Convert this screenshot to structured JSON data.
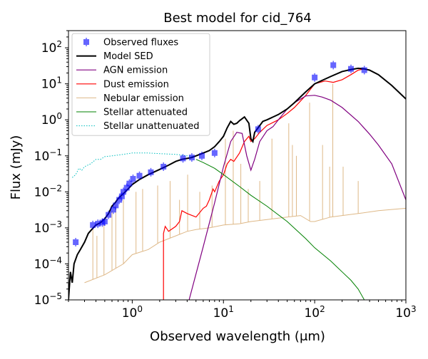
{
  "chart_data": {
    "type": "line",
    "title": "Best model for cid_764",
    "xlabel": "Observed wavelength (μm)",
    "ylabel": "Flux (mJy)",
    "xscale": "log",
    "yscale": "log",
    "xlim": [
      0.2,
      1000
    ],
    "ylim": [
      1e-05,
      300
    ],
    "x_ticks": [
      {
        "value": 1,
        "label": "10^0"
      },
      {
        "value": 10,
        "label": "10^1"
      },
      {
        "value": 100,
        "label": "10^2"
      },
      {
        "value": 1000,
        "label": "10^3"
      }
    ],
    "y_ticks": [
      {
        "value": 1e-05,
        "label": "10^-5"
      },
      {
        "value": 0.0001,
        "label": "10^-4"
      },
      {
        "value": 0.001,
        "label": "10^-3"
      },
      {
        "value": 0.01,
        "label": "10^-2"
      },
      {
        "value": 0.1,
        "label": "10^-1"
      },
      {
        "value": 1,
        "label": "10^0"
      },
      {
        "value": 10,
        "label": "10^1"
      },
      {
        "value": 100,
        "label": "10^2"
      }
    ],
    "legend_position": "top-left",
    "series": [
      {
        "name": "Model SED",
        "color": "#000000",
        "width": 2,
        "points": [
          [
            0.2,
            1e-05
          ],
          [
            0.21,
            6e-05
          ],
          [
            0.22,
            3e-05
          ],
          [
            0.23,
            0.0001
          ],
          [
            0.25,
            0.00018
          ],
          [
            0.27,
            0.00025
          ],
          [
            0.3,
            0.0004
          ],
          [
            0.33,
            0.0007
          ],
          [
            0.36,
            0.0009
          ],
          [
            0.4,
            0.0012
          ],
          [
            0.45,
            0.0014
          ],
          [
            0.5,
            0.0018
          ],
          [
            0.55,
            0.0025
          ],
          [
            0.6,
            0.004
          ],
          [
            0.65,
            0.005
          ],
          [
            0.7,
            0.0065
          ],
          [
            0.8,
            0.009
          ],
          [
            0.9,
            0.012
          ],
          [
            1.0,
            0.016
          ],
          [
            1.2,
            0.022
          ],
          [
            1.5,
            0.03
          ],
          [
            2.0,
            0.042
          ],
          [
            2.5,
            0.055
          ],
          [
            3,
            0.07
          ],
          [
            3.5,
            0.08
          ],
          [
            4,
            0.085
          ],
          [
            4.5,
            0.09
          ],
          [
            5,
            0.1
          ],
          [
            6,
            0.12
          ],
          [
            7,
            0.14
          ],
          [
            8,
            0.18
          ],
          [
            9,
            0.25
          ],
          [
            10,
            0.35
          ],
          [
            11,
            0.6
          ],
          [
            12,
            0.9
          ],
          [
            13,
            0.75
          ],
          [
            14,
            0.8
          ],
          [
            15,
            0.95
          ],
          [
            17,
            1.2
          ],
          [
            19,
            0.8
          ],
          [
            20,
            0.3
          ],
          [
            21,
            0.25
          ],
          [
            22,
            0.45
          ],
          [
            24,
            0.6
          ],
          [
            27,
            0.9
          ],
          [
            30,
            1.0
          ],
          [
            40,
            1.4
          ],
          [
            50,
            2.0
          ],
          [
            60,
            3.0
          ],
          [
            80,
            6.0
          ],
          [
            100,
            10
          ],
          [
            150,
            16
          ],
          [
            200,
            22
          ],
          [
            250,
            25
          ],
          [
            300,
            27
          ],
          [
            350,
            26
          ],
          [
            400,
            24
          ],
          [
            500,
            18
          ],
          [
            700,
            9
          ],
          [
            1000,
            3.8
          ]
        ]
      },
      {
        "name": "AGN emission",
        "color": "#800080",
        "width": 1.2,
        "points": [
          [
            4.2,
            1e-05
          ],
          [
            6,
            0.0003
          ],
          [
            8,
            0.005
          ],
          [
            10,
            0.05
          ],
          [
            12,
            0.25
          ],
          [
            14,
            0.45
          ],
          [
            16,
            0.42
          ],
          [
            18,
            0.1
          ],
          [
            20,
            0.04
          ],
          [
            22,
            0.08
          ],
          [
            25,
            0.25
          ],
          [
            30,
            0.5
          ],
          [
            35,
            0.65
          ],
          [
            40,
            1.0
          ],
          [
            50,
            2.0
          ],
          [
            60,
            3.0
          ],
          [
            80,
            4.6
          ],
          [
            100,
            4.8
          ],
          [
            120,
            4.3
          ],
          [
            150,
            3.5
          ],
          [
            200,
            2.2
          ],
          [
            300,
            0.9
          ],
          [
            400,
            0.4
          ],
          [
            500,
            0.2
          ],
          [
            700,
            0.06
          ],
          [
            1000,
            0.006
          ]
        ]
      },
      {
        "name": "Dust emission",
        "color": "#ff0000",
        "width": 1.2,
        "points": [
          [
            2.2,
            1e-05
          ],
          [
            2.2,
            0.0007
          ],
          [
            2.3,
            0.0011
          ],
          [
            2.5,
            0.0008
          ],
          [
            3,
            0.0011
          ],
          [
            3.3,
            0.0015
          ],
          [
            3.5,
            0.003
          ],
          [
            4,
            0.0025
          ],
          [
            5,
            0.002
          ],
          [
            6,
            0.0035
          ],
          [
            6.5,
            0.004
          ],
          [
            7,
            0.006
          ],
          [
            7.7,
            0.012
          ],
          [
            8,
            0.01
          ],
          [
            9,
            0.02
          ],
          [
            10,
            0.03
          ],
          [
            11,
            0.06
          ],
          [
            12,
            0.08
          ],
          [
            13,
            0.07
          ],
          [
            15,
            0.12
          ],
          [
            17,
            0.25
          ],
          [
            19,
            0.35
          ],
          [
            20,
            0.25
          ],
          [
            22,
            0.3
          ],
          [
            25,
            0.45
          ],
          [
            30,
            0.7
          ],
          [
            40,
            1.0
          ],
          [
            50,
            1.5
          ],
          [
            60,
            2.2
          ],
          [
            80,
            4.8
          ],
          [
            100,
            10
          ],
          [
            130,
            12
          ],
          [
            160,
            11
          ],
          [
            200,
            13
          ],
          [
            250,
            18
          ],
          [
            300,
            24
          ],
          [
            350,
            26
          ],
          [
            400,
            24
          ],
          [
            500,
            18
          ],
          [
            700,
            9
          ],
          [
            1000,
            3.8
          ]
        ]
      },
      {
        "name": "Nebular emission",
        "color": "#deb887",
        "width": 1,
        "points": [
          [
            0.3,
            3e-05
          ],
          [
            0.5,
            5e-05
          ],
          [
            0.8,
            0.0001
          ],
          [
            1,
            0.00018
          ],
          [
            1.5,
            0.00025
          ],
          [
            2,
            0.0004
          ],
          [
            3,
            0.0006
          ],
          [
            4,
            0.0008
          ],
          [
            5,
            0.0009
          ],
          [
            7,
            0.001
          ],
          [
            10,
            0.0012
          ],
          [
            15,
            0.0013
          ],
          [
            20,
            0.0015
          ],
          [
            30,
            0.0017
          ],
          [
            50,
            0.002
          ],
          [
            70,
            0.0022
          ],
          [
            90,
            0.0015
          ],
          [
            100,
            0.0015
          ],
          [
            150,
            0.002
          ],
          [
            200,
            0.0022
          ],
          [
            300,
            0.0025
          ],
          [
            500,
            0.003
          ],
          [
            1000,
            0.0035
          ]
        ],
        "emission_lines": [
          [
            0.37,
            0.001
          ],
          [
            0.41,
            0.0006
          ],
          [
            0.49,
            0.0012
          ],
          [
            0.6,
            0.003
          ],
          [
            0.66,
            0.0045
          ],
          [
            0.8,
            0.006
          ],
          [
            1.1,
            0.01
          ],
          [
            1.3,
            0.012
          ],
          [
            1.9,
            0.015
          ],
          [
            2.6,
            0.02
          ],
          [
            3.3,
            0.006
          ],
          [
            4.05,
            0.03
          ],
          [
            5.5,
            0.01
          ],
          [
            7.5,
            0.015
          ],
          [
            10.5,
            0.3
          ],
          [
            12.8,
            0.5
          ],
          [
            15.5,
            0.06
          ],
          [
            18.7,
            0.012
          ],
          [
            25,
            0.02
          ],
          [
            34,
            0.3
          ],
          [
            52,
            0.8
          ],
          [
            57,
            0.2
          ],
          [
            63,
            0.1
          ],
          [
            88,
            3.0
          ],
          [
            122,
            0.2
          ],
          [
            146,
            0.05
          ],
          [
            158,
            10
          ],
          [
            205,
            0.05
          ],
          [
            300,
            0.02
          ]
        ]
      },
      {
        "name": "Stellar attenuated",
        "color": "#008000",
        "width": 1,
        "points": [
          [
            5,
            0.08
          ],
          [
            6,
            0.065
          ],
          [
            8,
            0.045
          ],
          [
            10,
            0.03
          ],
          [
            15,
            0.014
          ],
          [
            20,
            0.008
          ],
          [
            30,
            0.004
          ],
          [
            50,
            0.0015
          ],
          [
            80,
            0.0005
          ],
          [
            100,
            0.00028
          ],
          [
            150,
            0.00012
          ],
          [
            200,
            6e-05
          ],
          [
            250,
            3.5e-05
          ],
          [
            300,
            2e-05
          ],
          [
            350,
            1e-05
          ]
        ]
      },
      {
        "name": "Stellar unattenuated",
        "color": "#00bfbf",
        "width": 1,
        "dotted": true,
        "points": [
          [
            0.22,
            0.025
          ],
          [
            0.24,
            0.03
          ],
          [
            0.26,
            0.045
          ],
          [
            0.28,
            0.04
          ],
          [
            0.3,
            0.05
          ],
          [
            0.35,
            0.06
          ],
          [
            0.4,
            0.08
          ],
          [
            0.45,
            0.08
          ],
          [
            0.5,
            0.095
          ],
          [
            0.6,
            0.1
          ],
          [
            0.8,
            0.11
          ],
          [
            1.0,
            0.12
          ],
          [
            1.5,
            0.12
          ],
          [
            2,
            0.115
          ],
          [
            3,
            0.11
          ],
          [
            4,
            0.1
          ],
          [
            5,
            0.095
          ]
        ]
      }
    ],
    "observed_fluxes": {
      "name": "Observed fluxes",
      "color": "#0000ff",
      "points": [
        [
          0.24,
          0.0004
        ],
        [
          0.37,
          0.0012
        ],
        [
          0.42,
          0.0013
        ],
        [
          0.47,
          0.0014
        ],
        [
          0.5,
          0.0015
        ],
        [
          0.55,
          0.0023
        ],
        [
          0.62,
          0.0032
        ],
        [
          0.66,
          0.0042
        ],
        [
          0.72,
          0.006
        ],
        [
          0.77,
          0.0075
        ],
        [
          0.8,
          0.01
        ],
        [
          0.87,
          0.013
        ],
        [
          0.93,
          0.017
        ],
        [
          1.02,
          0.023
        ],
        [
          1.2,
          0.028
        ],
        [
          1.6,
          0.035
        ],
        [
          2.2,
          0.05
        ],
        [
          3.6,
          0.085
        ],
        [
          4.5,
          0.09
        ],
        [
          5.8,
          0.1
        ],
        [
          8.0,
          0.12
        ],
        [
          24,
          0.55
        ],
        [
          100,
          15
        ],
        [
          160,
          33
        ],
        [
          250,
          26
        ],
        [
          350,
          24
        ]
      ]
    }
  }
}
